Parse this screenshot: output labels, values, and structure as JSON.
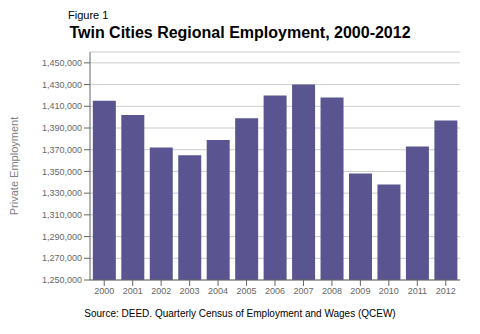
{
  "chart_data": {
    "type": "bar",
    "title": "Twin Cities Regional Employment, 2000-2012",
    "ylabel": "Private Employment",
    "annotations": [
      "Figure 1",
      "Source: DEED. Quarterly Census of Employment and Wages (QCEW)"
    ],
    "categories": [
      "2000",
      "2001",
      "2002",
      "2003",
      "2004",
      "2005",
      "2006",
      "2007",
      "2008",
      "2009",
      "2010",
      "2011",
      "2012"
    ],
    "values": [
      1415000,
      1402000,
      1372000,
      1365000,
      1379000,
      1399000,
      1420000,
      1430000,
      1418000,
      1348000,
      1338000,
      1373000,
      1397000
    ],
    "color": "#5a5490",
    "ylim": [
      1250000,
      1460000
    ],
    "yticks": [
      {
        "value": 1250000,
        "label": "1,250,000"
      },
      {
        "value": 1270000,
        "label": "1,270,000"
      },
      {
        "value": 1290000,
        "label": "1,290,000"
      },
      {
        "value": 1310000,
        "label": "1,310,000"
      },
      {
        "value": 1330000,
        "label": "1,330,000"
      },
      {
        "value": 1350000,
        "label": "1,350,000"
      },
      {
        "value": 1370000,
        "label": "1,370,000"
      },
      {
        "value": 1390000,
        "label": "1,390,000"
      },
      {
        "value": 1410000,
        "label": "1,410,000"
      },
      {
        "value": 1430000,
        "label": "1,430,000"
      },
      {
        "value": 1450000,
        "label": "1,450,000"
      }
    ],
    "grid": true
  }
}
